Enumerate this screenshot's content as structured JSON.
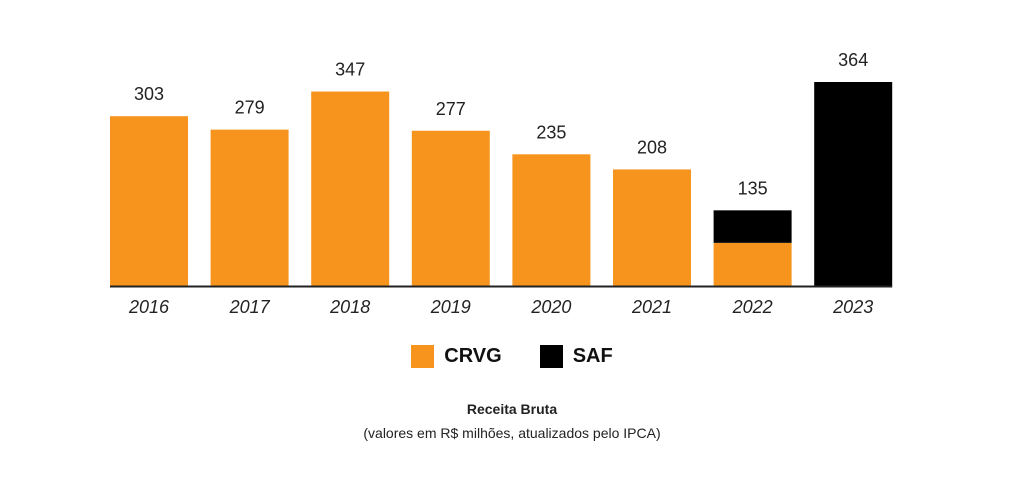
{
  "chart_data": {
    "type": "bar",
    "stacked": true,
    "categories": [
      "2016",
      "2017",
      "2018",
      "2019",
      "2020",
      "2021",
      "2022",
      "2023"
    ],
    "totals": [
      303,
      279,
      347,
      277,
      235,
      208,
      135,
      364
    ],
    "series": [
      {
        "name": "CRVG",
        "color": "#F7941D",
        "values": [
          303,
          279,
          347,
          277,
          235,
          208,
          77,
          0
        ]
      },
      {
        "name": "SAF",
        "color": "#000000",
        "values": [
          0,
          0,
          0,
          0,
          0,
          0,
          58,
          364
        ]
      }
    ],
    "title": "Receita Bruta",
    "subtitle": "(valores em R$ milhões, atualizados pelo IPCA)",
    "ylim": [
      0,
      364
    ],
    "legend_position": "bottom"
  }
}
